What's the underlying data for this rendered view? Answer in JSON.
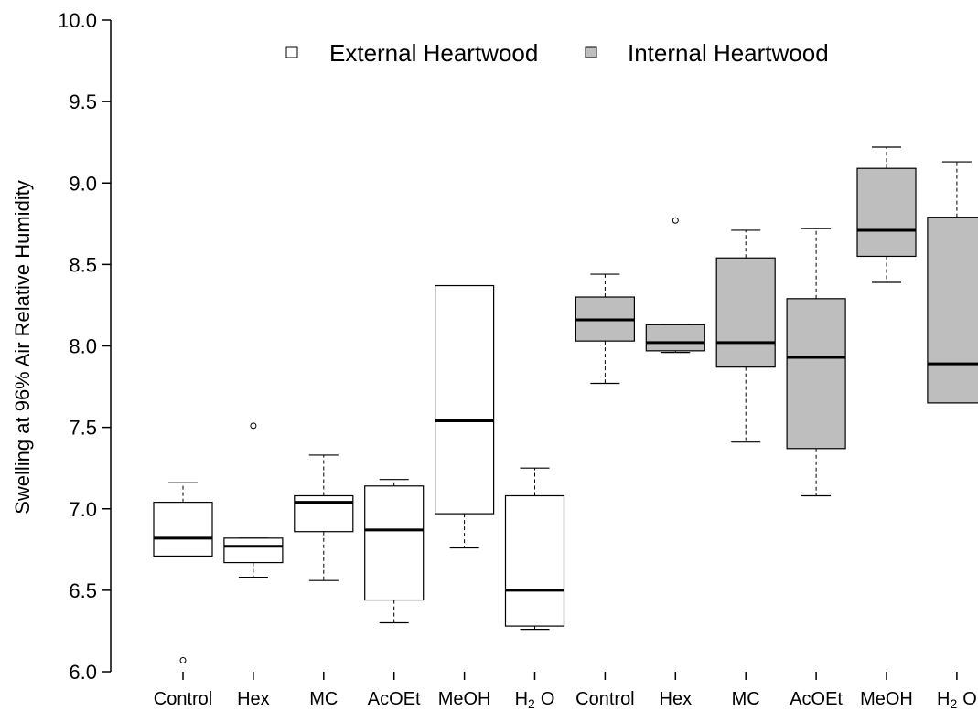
{
  "chart_data": {
    "type": "box",
    "ylabel": "Swelling at 96% Air Relative Humidity",
    "ylim": [
      6.0,
      10.0
    ],
    "yticks": [
      "6.0",
      "6.5",
      "7.0",
      "7.5",
      "8.0",
      "8.5",
      "9.0",
      "9.5",
      "10.0"
    ],
    "legend": {
      "position": "top",
      "entries": [
        {
          "label": "External Heartwood",
          "color": "#ffffff"
        },
        {
          "label": "Internal Heartwood",
          "color": "#bebebe"
        }
      ]
    },
    "groups": [
      {
        "name": "External Heartwood",
        "color": "#ffffff",
        "boxes": [
          {
            "label": "Control",
            "min": 6.71,
            "q1": 6.71,
            "median": 6.82,
            "q3": 7.04,
            "max": 7.16,
            "outliers": [
              6.07
            ]
          },
          {
            "label": "Hex",
            "min": 6.58,
            "q1": 6.67,
            "median": 6.77,
            "q3": 6.82,
            "max": 6.82,
            "outliers": [
              7.51
            ]
          },
          {
            "label": "MC",
            "min": 6.56,
            "q1": 6.86,
            "median": 7.04,
            "q3": 7.08,
            "max": 7.33,
            "outliers": []
          },
          {
            "label": "AcOEt",
            "min": 6.3,
            "q1": 6.44,
            "median": 6.87,
            "q3": 7.14,
            "max": 7.18,
            "outliers": []
          },
          {
            "label": "MeOH",
            "min": 6.76,
            "q1": 6.97,
            "median": 7.54,
            "q3": 8.37,
            "max": 8.37,
            "outliers": []
          },
          {
            "label_main": "H",
            "label_sub": "2",
            "label_end": "O",
            "min": 6.26,
            "q1": 6.28,
            "median": 6.5,
            "q3": 7.08,
            "max": 7.25,
            "outliers": []
          }
        ]
      },
      {
        "name": "Internal Heartwood",
        "color": "#bebebe",
        "boxes": [
          {
            "label": "Control",
            "min": 7.77,
            "q1": 8.03,
            "median": 8.16,
            "q3": 8.3,
            "max": 8.44,
            "outliers": []
          },
          {
            "label": "Hex",
            "min": 7.96,
            "q1": 7.97,
            "median": 8.02,
            "q3": 8.13,
            "max": 8.13,
            "outliers": [
              8.77
            ]
          },
          {
            "label": "MC",
            "min": 7.41,
            "q1": 7.87,
            "median": 8.02,
            "q3": 8.54,
            "max": 8.71,
            "outliers": []
          },
          {
            "label": "AcOEt",
            "min": 7.08,
            "q1": 7.37,
            "median": 7.93,
            "q3": 8.29,
            "max": 8.72,
            "outliers": []
          },
          {
            "label": "MeOH",
            "min": 8.39,
            "q1": 8.55,
            "median": 8.71,
            "q3": 9.09,
            "max": 9.22,
            "outliers": []
          },
          {
            "label_main": "H",
            "label_sub": "2",
            "label_end": "O",
            "min": 7.65,
            "q1": 7.65,
            "median": 7.89,
            "q3": 8.79,
            "max": 9.13,
            "outliers": []
          }
        ]
      }
    ]
  }
}
